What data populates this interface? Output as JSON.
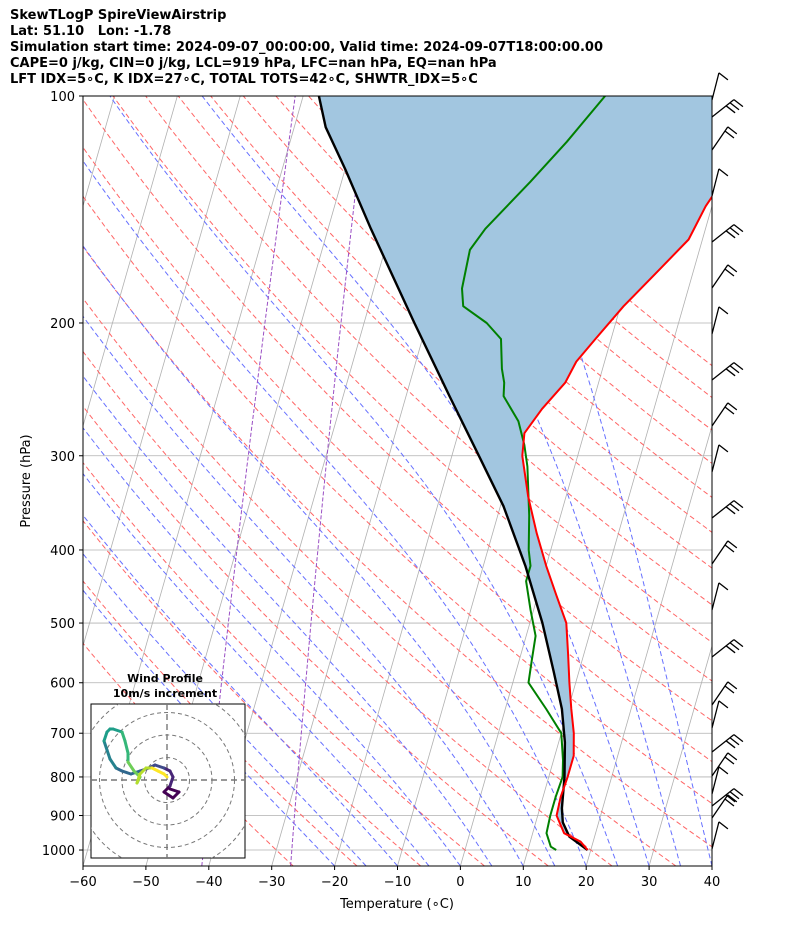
{
  "header": {
    "line1": "SkewTLogP SpireViewAirstrip",
    "line2": "Lat: 51.10   Lon: -1.78",
    "line3": "Simulation start time: 2024-09-07_00:00:00, Valid time: 2024-09-07T18:00:00.00",
    "line4": "CAPE=0 j/kg, CIN=0 j/kg, LCL=919 hPa, LFC=nan hPa, EQ=nan hPa",
    "line5": "LFT IDX=5∘C, K IDX=27∘C, TOTAL TOTS=42∘C, SHWTR_IDX=5∘C"
  },
  "chart_data": {
    "type": "skew-t log-p",
    "xlabel": "Temperature (∘C)",
    "ylabel": "Pressure (hPa)",
    "xlim": [
      -60,
      40
    ],
    "ylim": [
      1050,
      100
    ],
    "y_scale": "log",
    "x_ticks": [
      -60,
      -50,
      -40,
      -30,
      -20,
      -10,
      0,
      10,
      20,
      30,
      40
    ],
    "y_ticks": [
      100,
      200,
      300,
      400,
      500,
      600,
      700,
      800,
      900,
      1000
    ],
    "grid": true,
    "colors": {
      "temperature": "#ff0000",
      "dewpoint": "#008000",
      "parcel": "#000000",
      "shading": "#a2c6e0",
      "dry_adiabats": "#ff6666",
      "moist_adiabats": "#6670ff",
      "mixing_ratio": "#9a4fc4",
      "isotherms": "#b0b0b0"
    },
    "series": [
      {
        "name": "",
        "role": "temperature",
        "points": [
          [
            19.5,
            1000
          ],
          [
            18,
            975
          ],
          [
            15,
            950
          ],
          [
            13,
            900
          ],
          [
            12.8,
            850
          ],
          [
            13,
            800
          ],
          [
            13,
            750
          ],
          [
            12,
            700
          ],
          [
            10.5,
            650
          ],
          [
            9,
            600
          ],
          [
            7.5,
            550
          ],
          [
            5.8,
            500
          ],
          [
            3,
            460
          ],
          [
            0,
            420
          ],
          [
            -3,
            380
          ],
          [
            -6,
            340
          ],
          [
            -8.8,
            300
          ],
          [
            -9.5,
            280
          ],
          [
            -7.8,
            260
          ],
          [
            -5.3,
            240
          ],
          [
            -4.5,
            225
          ],
          [
            -2.5,
            210
          ],
          [
            0.5,
            190
          ],
          [
            4.5,
            170
          ],
          [
            7.8,
            155
          ],
          [
            9,
            140
          ],
          [
            10.5,
            130
          ],
          [
            12.5,
            120
          ],
          [
            14,
            112
          ],
          [
            16,
            106
          ],
          [
            18,
            100
          ]
        ]
      },
      {
        "name": "",
        "role": "dewpoint",
        "points": [
          [
            14.5,
            1000
          ],
          [
            13.5,
            990
          ],
          [
            12.2,
            950
          ],
          [
            12,
            900
          ],
          [
            12,
            850
          ],
          [
            12.2,
            800
          ],
          [
            11.5,
            760
          ],
          [
            10,
            700
          ],
          [
            6.5,
            650
          ],
          [
            2.5,
            600
          ],
          [
            2,
            560
          ],
          [
            1.5,
            520
          ],
          [
            -0.5,
            480
          ],
          [
            -2.5,
            440
          ],
          [
            -2.5,
            420
          ],
          [
            -3.5,
            400
          ],
          [
            -5,
            360
          ],
          [
            -7.5,
            310
          ],
          [
            -9,
            290
          ],
          [
            -11,
            270
          ],
          [
            -14.5,
            250
          ],
          [
            -15,
            240
          ],
          [
            -16,
            230
          ],
          [
            -17.5,
            210
          ],
          [
            -20.5,
            200
          ],
          [
            -25,
            190
          ],
          [
            -26,
            180
          ],
          [
            -26.5,
            160
          ],
          [
            -25,
            150
          ],
          [
            -20,
            130
          ],
          [
            -16,
            115
          ],
          [
            -12,
            100
          ]
        ]
      },
      {
        "name": "",
        "role": "parcel",
        "points": [
          [
            19.5,
            1000
          ],
          [
            16,
            960
          ],
          [
            14.3,
            919
          ],
          [
            13.5,
            880
          ],
          [
            12.5,
            800
          ],
          [
            11,
            720
          ],
          [
            9,
            650
          ],
          [
            6,
            580
          ],
          [
            2,
            500
          ],
          [
            -3.3,
            420
          ],
          [
            -9.5,
            350
          ],
          [
            -15.7,
            300
          ],
          [
            -23.1,
            250
          ],
          [
            -32,
            200
          ],
          [
            -43.2,
            150
          ],
          [
            -50,
            125
          ],
          [
            -55,
            110
          ],
          [
            -57.5,
            100
          ]
        ]
      }
    ],
    "wind_barbs": [
      "barb-1000",
      "barb-950",
      "barb-925",
      "barb-900",
      "barb-850",
      "barb-800",
      "barb-750",
      "barb-700",
      "barb-650",
      "barb-600",
      "barb-550",
      "barb-500",
      "barb-450",
      "barb-400",
      "barb-350",
      "barb-300",
      "barb-250",
      "barb-200",
      "barb-175",
      "barb-150",
      "barb-130",
      "barb-115"
    ],
    "inset": {
      "title": "Wind Profile",
      "subtitle": "10m/s increment",
      "rings": [
        10,
        20,
        30,
        40
      ],
      "hodograph": [
        [
          1,
          -3
        ],
        [
          4,
          -4
        ],
        [
          2,
          -6
        ],
        [
          -1,
          -4
        ],
        [
          1,
          -2
        ],
        [
          2,
          1
        ],
        [
          1,
          3
        ],
        [
          -1,
          4
        ],
        [
          -4,
          5
        ],
        [
          -6,
          4
        ],
        [
          -9,
          3
        ],
        [
          -12,
          2
        ],
        [
          -15,
          3
        ],
        [
          -17,
          4
        ],
        [
          -19,
          7
        ],
        [
          -20,
          10
        ],
        [
          -21,
          13
        ],
        [
          -20,
          16
        ],
        [
          -19,
          17
        ],
        [
          -18,
          17
        ],
        [
          -15,
          16
        ],
        [
          -14,
          13
        ],
        [
          -13,
          9
        ],
        [
          -13,
          6
        ],
        [
          -11,
          3
        ],
        [
          -9,
          1
        ],
        [
          -10,
          -1
        ],
        [
          -9,
          2
        ],
        [
          -7,
          4
        ],
        [
          -5,
          4
        ],
        [
          -3,
          3
        ],
        [
          -1,
          2
        ],
        [
          0,
          1
        ]
      ]
    }
  }
}
